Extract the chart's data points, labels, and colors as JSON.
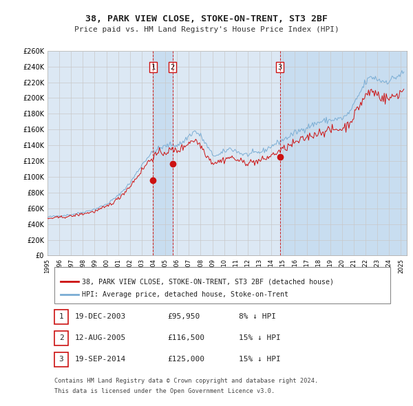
{
  "title": "38, PARK VIEW CLOSE, STOKE-ON-TRENT, ST3 2BF",
  "subtitle": "Price paid vs. HM Land Registry's House Price Index (HPI)",
  "hpi_color": "#7aadd4",
  "price_color": "#cc1111",
  "background_color": "#ffffff",
  "grid_color": "#c8c8c8",
  "plot_bg_color": "#dce8f4",
  "shade_color": "#c8ddf0",
  "ylim": [
    0,
    260000
  ],
  "yticks": [
    0,
    20000,
    40000,
    60000,
    80000,
    100000,
    120000,
    140000,
    160000,
    180000,
    200000,
    220000,
    240000,
    260000
  ],
  "xlim_start": 1995.0,
  "xlim_end": 2025.5,
  "sales": [
    {
      "num": 1,
      "date": "19-DEC-2003",
      "price": 95950,
      "pct": "8%",
      "x": 2003.96
    },
    {
      "num": 2,
      "date": "12-AUG-2005",
      "price": 116500,
      "pct": "15%",
      "x": 2005.62
    },
    {
      "num": 3,
      "date": "19-SEP-2014",
      "price": 125000,
      "pct": "15%",
      "x": 2014.72
    }
  ],
  "legend_line1": "38, PARK VIEW CLOSE, STOKE-ON-TRENT, ST3 2BF (detached house)",
  "legend_line2": "HPI: Average price, detached house, Stoke-on-Trent",
  "footer1": "Contains HM Land Registry data © Crown copyright and database right 2024.",
  "footer2": "This data is licensed under the Open Government Licence v3.0."
}
